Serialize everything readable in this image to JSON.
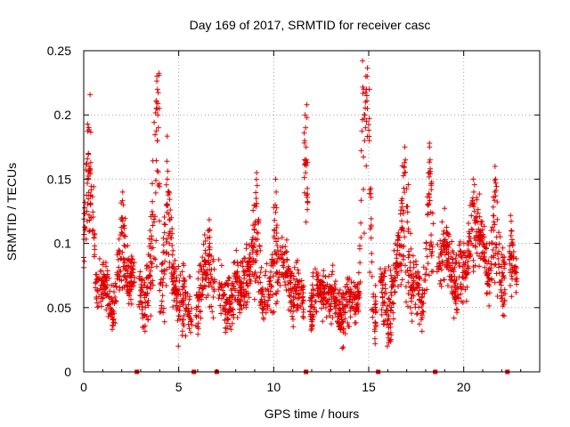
{
  "chart_data": {
    "type": "scatter",
    "title": "Day 169 of 2017, SRMTID for receiver casc",
    "xlabel": "GPS time / hours",
    "ylabel": "SRMTID / TECUs",
    "xlim": [
      0,
      24
    ],
    "ylim": [
      0,
      0.25
    ],
    "x_ticks": [
      0,
      5,
      10,
      15,
      20
    ],
    "x_tick_labels": [
      "0",
      "5",
      "10",
      "15",
      "20"
    ],
    "y_ticks": [
      0,
      0.05,
      0.1,
      0.15,
      0.2,
      0.25
    ],
    "y_tick_labels": [
      "0",
      "0.05",
      "0.1",
      "0.15",
      "0.2",
      "0.25"
    ],
    "grid": true,
    "marker": "plus",
    "color": "#e00000",
    "gap_markers_x": [
      2.8,
      5.8,
      7.0,
      11.7,
      15.5,
      18.5,
      22.3
    ],
    "segments": [
      {
        "start": 0.0,
        "end": 0.6,
        "base": 0.09,
        "amp": 0.03,
        "peaks": [
          [
            0.25,
            0.17
          ],
          [
            0.35,
            0.13
          ]
        ]
      },
      {
        "start": 0.6,
        "end": 2.7,
        "base": 0.065,
        "amp": 0.025,
        "peaks": [
          [
            2.05,
            0.14
          ]
        ]
      },
      {
        "start": 2.9,
        "end": 4.0,
        "base": 0.06,
        "amp": 0.03,
        "peaks": [
          [
            3.5,
            0.11
          ],
          [
            3.85,
            0.23
          ],
          [
            3.9,
            0.2
          ]
        ]
      },
      {
        "start": 4.0,
        "end": 5.7,
        "base": 0.06,
        "amp": 0.035,
        "peaks": [
          [
            4.4,
            0.15
          ]
        ]
      },
      {
        "start": 5.9,
        "end": 6.9,
        "base": 0.055,
        "amp": 0.03,
        "peaks": [
          [
            6.6,
            0.11
          ]
        ]
      },
      {
        "start": 7.1,
        "end": 11.6,
        "base": 0.065,
        "amp": 0.03,
        "peaks": [
          [
            9.1,
            0.155
          ],
          [
            10.1,
            0.15
          ]
        ]
      },
      {
        "start": 11.6,
        "end": 11.8,
        "base": 0.13,
        "amp": 0.05,
        "peaks": [
          [
            11.65,
            0.2
          ],
          [
            11.7,
            0.175
          ]
        ]
      },
      {
        "start": 11.9,
        "end": 15.4,
        "base": 0.055,
        "amp": 0.025,
        "peaks": [
          [
            14.85,
            0.23
          ],
          [
            14.8,
            0.2
          ],
          [
            14.9,
            0.215
          ]
        ]
      },
      {
        "start": 15.6,
        "end": 18.4,
        "base": 0.07,
        "amp": 0.035,
        "peaks": [
          [
            16.0,
            0.04
          ],
          [
            16.9,
            0.175
          ],
          [
            18.2,
            0.175
          ]
        ]
      },
      {
        "start": 18.6,
        "end": 22.2,
        "base": 0.085,
        "amp": 0.035,
        "peaks": [
          [
            20.5,
            0.15
          ],
          [
            21.65,
            0.16
          ]
        ]
      },
      {
        "start": 22.4,
        "end": 22.8,
        "base": 0.06,
        "amp": 0.02,
        "peaks": [
          [
            22.5,
            0.11
          ]
        ]
      }
    ]
  }
}
